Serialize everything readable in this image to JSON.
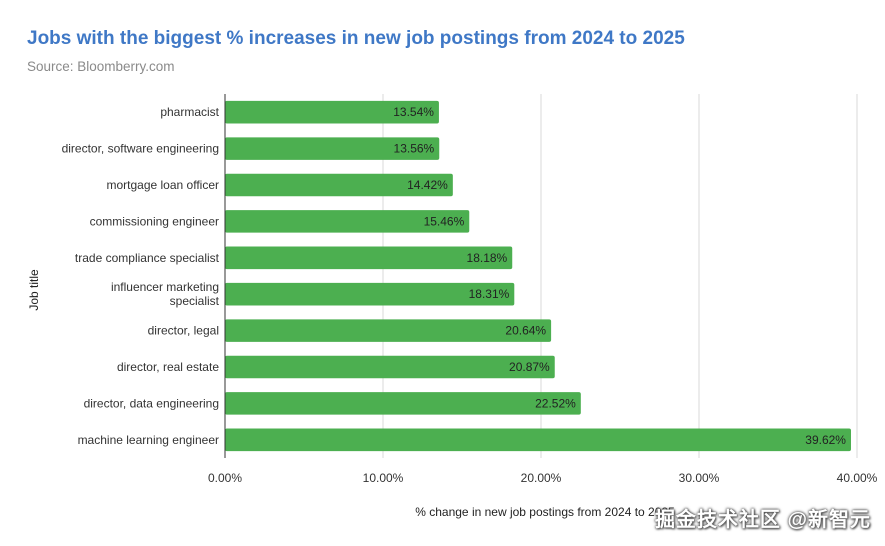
{
  "chart_data": {
    "type": "bar",
    "orientation": "horizontal",
    "title": "Jobs with the biggest % increases in new job postings from 2024 to 2025",
    "subtitle": "Source: Bloomberry.com",
    "xlabel": "% change in new job postings from 2024 to 2025",
    "ylabel": "Job title",
    "xlim": [
      0,
      40
    ],
    "xticks": [
      0,
      10,
      20,
      30,
      40
    ],
    "xtick_labels": [
      "0.00%",
      "10.00%",
      "20.00%",
      "30.00%",
      "40.00%"
    ],
    "grid": true,
    "legend": "none",
    "color": "#4caf50",
    "categories": [
      [
        "pharmacist"
      ],
      [
        "director, software engineering"
      ],
      [
        "mortgage loan officer"
      ],
      [
        "commissioning engineer"
      ],
      [
        "trade compliance specialist"
      ],
      [
        "influencer marketing",
        "specialist"
      ],
      [
        "director, legal"
      ],
      [
        "director, real estate"
      ],
      [
        "director, data engineering"
      ],
      [
        "machine learning engineer"
      ]
    ],
    "values": [
      13.54,
      13.56,
      14.42,
      15.46,
      18.18,
      18.31,
      20.64,
      20.87,
      22.52,
      39.62
    ],
    "data_labels": [
      "13.54%",
      "13.56%",
      "14.42%",
      "15.46%",
      "18.18%",
      "18.31%",
      "20.64%",
      "20.87%",
      "22.52%",
      "39.62%"
    ]
  },
  "watermark": "掘金技术社区 @新智元"
}
